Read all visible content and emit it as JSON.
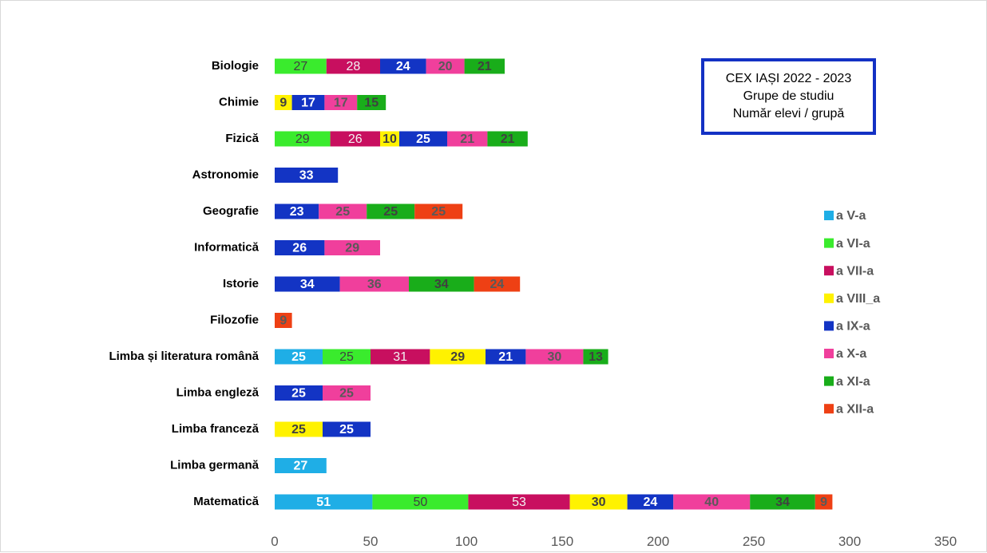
{
  "chart_data": {
    "type": "bar",
    "orientation": "horizontal",
    "stacked": true,
    "title_lines": [
      "CEX IAȘI 2022 - 2023",
      "Grupe de studiu",
      "Număr elevi / grupă"
    ],
    "categories": [
      "Biologie",
      "Chimie",
      "Fizică",
      "Astronomie",
      "Geografie",
      "Informatică",
      "Istorie",
      "Filozofie",
      "Limba și literatura română",
      "Limba engleză",
      "Limba franceză",
      "Limba germană",
      "Matematică"
    ],
    "xlim": [
      0,
      350
    ],
    "xticks": [
      0,
      50,
      100,
      150,
      200,
      250,
      300,
      350
    ],
    "grid": false,
    "legend_position": "right",
    "series": [
      {
        "name": "a V-a",
        "color": "#1faee6",
        "label_color": "#ffffff",
        "label_bold": true,
        "values": [
          null,
          null,
          null,
          null,
          null,
          null,
          null,
          null,
          25,
          null,
          null,
          27,
          51
        ]
      },
      {
        "name": "a VI-a",
        "color": "#3aeb2d",
        "label_color": "#404040",
        "label_bold": false,
        "values": [
          27,
          null,
          29,
          null,
          null,
          null,
          null,
          null,
          25,
          null,
          null,
          null,
          50
        ]
      },
      {
        "name": "a VII-a",
        "color": "#c80f5f",
        "label_color": "#f2f2f2",
        "label_bold": false,
        "values": [
          28,
          null,
          26,
          null,
          null,
          null,
          null,
          null,
          31,
          null,
          null,
          null,
          53
        ]
      },
      {
        "name": "a VIII_a",
        "color": "#fff200",
        "label_color": "#404040",
        "label_bold": true,
        "values": [
          null,
          9,
          10,
          null,
          null,
          null,
          null,
          null,
          29,
          null,
          25,
          null,
          30
        ]
      },
      {
        "name": "a IX-a",
        "color": "#1334c4",
        "label_color": "#ffffff",
        "label_bold": true,
        "values": [
          24,
          17,
          25,
          33,
          23,
          26,
          34,
          null,
          21,
          25,
          25,
          null,
          24
        ]
      },
      {
        "name": "a X-a",
        "color": "#f03f9c",
        "label_color": "#595959",
        "label_bold": true,
        "values": [
          20,
          17,
          21,
          null,
          25,
          29,
          36,
          null,
          30,
          25,
          null,
          null,
          40
        ]
      },
      {
        "name": "a XI-a",
        "color": "#19ad1a",
        "label_color": "#404040",
        "label_bold": true,
        "values": [
          21,
          15,
          21,
          null,
          25,
          null,
          34,
          null,
          13,
          null,
          null,
          null,
          34
        ]
      },
      {
        "name": "a XII-a",
        "color": "#ee4014",
        "label_color": "#595959",
        "label_bold": true,
        "values": [
          null,
          null,
          null,
          null,
          25,
          null,
          24,
          9,
          null,
          null,
          null,
          null,
          9
        ]
      }
    ]
  }
}
